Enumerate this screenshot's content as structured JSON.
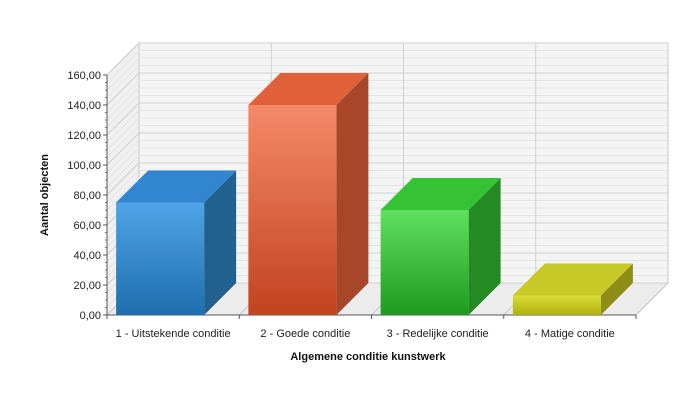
{
  "chart_data": {
    "type": "bar",
    "title": "",
    "xlabel": "Algemene conditie kunstwerk",
    "ylabel": "Aantal objecten",
    "categories": [
      "1 - Uitstekende conditie",
      "2 - Goede conditie",
      "3 - Redelijke conditie",
      "4 - Matige conditie"
    ],
    "values": [
      75,
      140,
      70,
      13
    ],
    "ylim": [
      0,
      160
    ],
    "yticks": [
      0,
      20,
      40,
      60,
      80,
      100,
      120,
      140,
      160
    ],
    "ytick_labels": [
      "0,00",
      "20,00",
      "40,00",
      "60,00",
      "80,00",
      "100,00",
      "120,00",
      "140,00",
      "160,00"
    ],
    "grid": true,
    "legend": "none",
    "style": "3d",
    "colors": [
      {
        "front_top": "#4fa3e6",
        "front_bottom": "#1f6fae",
        "top": "#3186cf",
        "side": "#22608f"
      },
      {
        "front_top": "#f5896a",
        "front_bottom": "#c1431f",
        "top": "#e0603a",
        "side": "#a8462a"
      },
      {
        "front_top": "#5fe05f",
        "front_bottom": "#1f9a1f",
        "top": "#35c235",
        "side": "#248a24"
      },
      {
        "front_top": "#dcdc3a",
        "front_bottom": "#b0b00a",
        "top": "#c8c828",
        "side": "#8e8e16"
      }
    ]
  }
}
